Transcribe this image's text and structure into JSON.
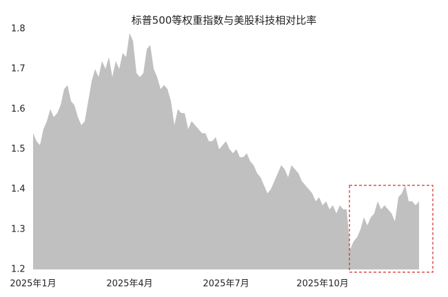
{
  "chart_data": {
    "type": "area",
    "title": "标普500等权重指数与美股科技相对比率",
    "categories": [
      "2025年1月",
      null,
      null,
      null,
      null,
      null,
      null,
      null,
      null,
      null,
      null,
      null,
      null,
      null,
      null,
      null,
      null,
      null,
      null,
      null,
      null,
      null,
      null,
      null,
      null,
      null,
      null,
      null,
      "2025年4月",
      null,
      null,
      null,
      null,
      null,
      null,
      null,
      null,
      null,
      null,
      null,
      null,
      null,
      null,
      null,
      null,
      null,
      null,
      null,
      null,
      null,
      null,
      null,
      null,
      null,
      null,
      null,
      "2025年7月",
      null,
      null,
      null,
      null,
      null,
      null,
      null,
      null,
      null,
      null,
      null,
      null,
      null,
      null,
      null,
      null,
      null,
      null,
      null,
      null,
      null,
      null,
      null,
      null,
      null,
      null,
      null,
      "2025年10月",
      null,
      null,
      null,
      null,
      null,
      null,
      null,
      null,
      null,
      null,
      null,
      null,
      null,
      null,
      null,
      null,
      null,
      null,
      null,
      null,
      null,
      null,
      null,
      null,
      null,
      null,
      null,
      null
    ],
    "values": [
      1.54,
      1.52,
      1.51,
      1.55,
      1.57,
      1.6,
      1.58,
      1.59,
      1.61,
      1.65,
      1.66,
      1.62,
      1.61,
      1.58,
      1.56,
      1.57,
      1.62,
      1.67,
      1.7,
      1.68,
      1.72,
      1.7,
      1.73,
      1.68,
      1.72,
      1.7,
      1.74,
      1.73,
      1.79,
      1.77,
      1.69,
      1.68,
      1.69,
      1.75,
      1.76,
      1.7,
      1.68,
      1.65,
      1.66,
      1.65,
      1.62,
      1.56,
      1.6,
      1.59,
      1.59,
      1.55,
      1.57,
      1.56,
      1.55,
      1.54,
      1.54,
      1.52,
      1.52,
      1.53,
      1.5,
      1.51,
      1.52,
      1.5,
      1.49,
      1.5,
      1.48,
      1.48,
      1.49,
      1.47,
      1.46,
      1.44,
      1.43,
      1.41,
      1.39,
      1.4,
      1.42,
      1.44,
      1.46,
      1.45,
      1.43,
      1.46,
      1.45,
      1.44,
      1.42,
      1.41,
      1.4,
      1.39,
      1.37,
      1.38,
      1.36,
      1.37,
      1.35,
      1.36,
      1.34,
      1.36,
      1.35,
      1.35,
      1.25,
      1.27,
      1.28,
      1.3,
      1.33,
      1.31,
      1.33,
      1.34,
      1.37,
      1.35,
      1.36,
      1.35,
      1.34,
      1.32,
      1.38,
      1.39,
      1.41,
      1.37,
      1.37,
      1.36,
      1.37
    ],
    "color": "#c0c0c0",
    "ylim": [
      1.2,
      1.8
    ],
    "yticks": [
      1.2,
      1.3,
      1.4,
      1.5,
      1.6,
      1.7,
      1.8
    ]
  }
}
